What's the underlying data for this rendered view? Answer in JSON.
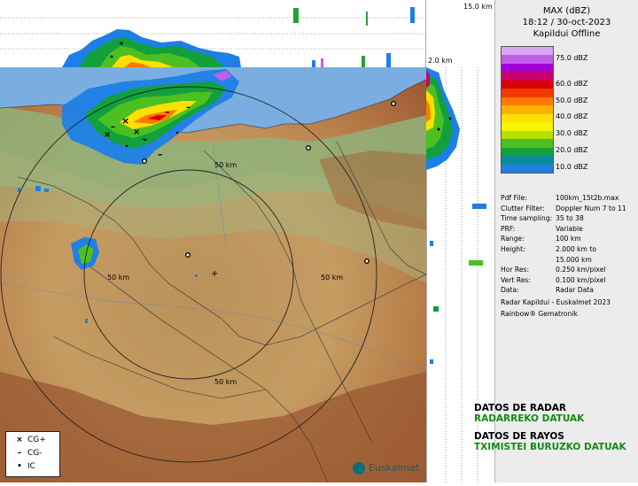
{
  "legend": {
    "title_product": "MAX (dBZ)",
    "title_datetime": "18:12 / 30-oct-2023",
    "title_station": "Kapildui Offline",
    "scale": [
      {
        "value": 80,
        "label": "",
        "color": "#d9a6f2"
      },
      {
        "value": 75,
        "label": "75.0 dBZ",
        "color": "#c05ee6"
      },
      {
        "value": 70,
        "label": "",
        "color": "#a100d6"
      },
      {
        "value": 65,
        "label": "",
        "color": "#c8006e"
      },
      {
        "value": 60,
        "label": "60.0 dBZ",
        "color": "#d80000"
      },
      {
        "value": 55,
        "label": "",
        "color": "#f03a00"
      },
      {
        "value": 50,
        "label": "50.0 dBZ",
        "color": "#ff7a00"
      },
      {
        "value": 45,
        "label": "",
        "color": "#ffb000"
      },
      {
        "value": 40,
        "label": "40.0 dBZ",
        "color": "#ffe000"
      },
      {
        "value": 35,
        "label": "",
        "color": "#f5f500"
      },
      {
        "value": 30,
        "label": "30.0 dBZ",
        "color": "#b5e000"
      },
      {
        "value": 25,
        "label": "",
        "color": "#4cc020"
      },
      {
        "value": 20,
        "label": "20.0 dBZ",
        "color": "#12a03c"
      },
      {
        "value": 15,
        "label": "",
        "color": "#0a8c9a"
      },
      {
        "value": 10,
        "label": "10.0 dBZ",
        "color": "#1e7fe6"
      }
    ]
  },
  "metadata": [
    {
      "key": "Pdf File:",
      "value": "100km_15t2b.max"
    },
    {
      "key": "Clutter Filter:",
      "value": "Doppler Num 7 to 11"
    },
    {
      "key": "Time sampling:",
      "value": "35 to 38"
    },
    {
      "key": "PRF:",
      "value": "Variable"
    },
    {
      "key": "Range:",
      "value": "100 km"
    },
    {
      "key": "Height:",
      "value": "2.000 km to"
    },
    {
      "key": "",
      "value": "15.000 km"
    },
    {
      "key": "Hor Res:",
      "value": "0.250 km/pixel"
    },
    {
      "key": "Vert Res:",
      "value": "0.100 km/pixel"
    },
    {
      "key": "Data:",
      "value": "Radar Data"
    }
  ],
  "credits": [
    "Radar Kapildui - Euskalmet 2023",
    "Rainbow® Gematronik"
  ],
  "map": {
    "ring_labels": [
      "50 km",
      "50 km",
      "50 km",
      "50 km"
    ],
    "height_top": "15.0 km",
    "height_bottom": "2.0 km",
    "colors": {
      "sea": "#7aaee0",
      "land_low": "#7fb27a",
      "land_mid": "#c9a46a",
      "land_high": "#a9653a"
    }
  },
  "lightning_legend": [
    {
      "symbol": "×",
      "label": "CG+"
    },
    {
      "symbol": "–",
      "label": "CG-"
    },
    {
      "symbol": "•",
      "label": "IC"
    }
  ],
  "headings": {
    "radar_es": "DATOS DE RADAR",
    "radar_eu": "RADARREKO DATUAK",
    "rayos_es": "DATOS DE RAYOS",
    "rayos_eu": "TXIMISTEI BURUZKO DATUAK"
  },
  "logo": {
    "text": "Euskalmet"
  }
}
